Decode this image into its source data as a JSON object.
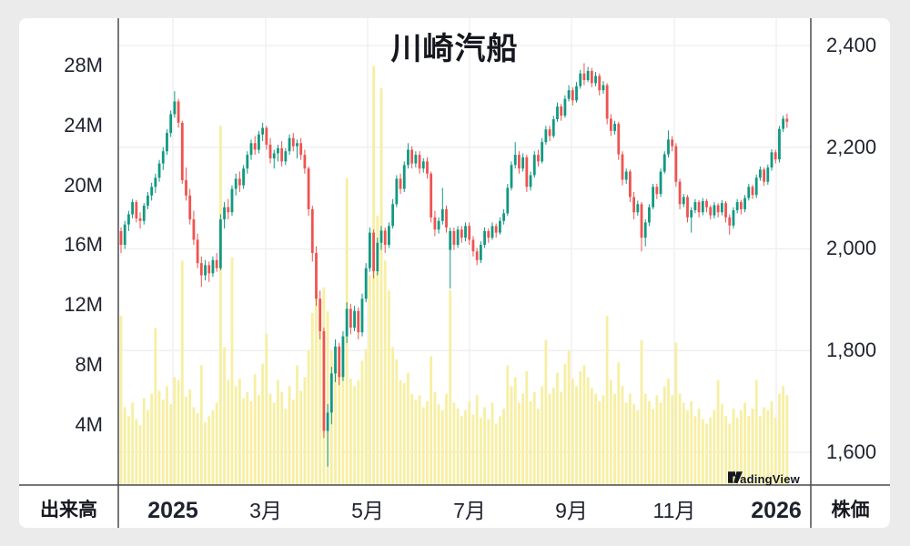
{
  "title": "川崎汽船",
  "volume_axis": {
    "title": "出来高",
    "ticks": [
      "28M",
      "24M",
      "20M",
      "16M",
      "12M",
      "8M",
      "4M"
    ]
  },
  "price_axis": {
    "title": "株価",
    "ticks": [
      "2,400",
      "2,200",
      "2,000",
      "1,800",
      "1,600"
    ]
  },
  "x_axis": {
    "ticks": [
      "2025",
      "3月",
      "5月",
      "7月",
      "9月",
      "11月",
      "2026"
    ]
  },
  "watermark": {
    "label": "TradingView"
  },
  "colors": {
    "up": "#119982",
    "down": "#ef5350",
    "volume": "#f7efa2",
    "grid": "#f0f0f0",
    "axis_line": "#4a4a4e",
    "text": "#1e222d",
    "background": "#ffffff",
    "page_background": "#ebebeb",
    "watermark_text": "#131722"
  },
  "chart_data": {
    "type": "candlestick",
    "title": "川崎汽船",
    "x_tick_labels": [
      "2025",
      "3月",
      "5月",
      "7月",
      "9月",
      "11月",
      "2026"
    ],
    "price_ticks": [
      2400,
      2200,
      2000,
      1800,
      1600
    ],
    "price_range": [
      1600,
      2400
    ],
    "volume_ticks_millions": [
      28,
      24,
      20,
      16,
      12,
      8,
      4
    ],
    "volume_unit": "M",
    "legend": "none",
    "grid": "on",
    "candles_format": [
      "open",
      "high",
      "low",
      "close",
      "volume_millions"
    ],
    "candles": [
      [
        2035,
        2042,
        1992,
        2008,
        11.3
      ],
      [
        2008,
        2055,
        2000,
        2048,
        5.2
      ],
      [
        2048,
        2075,
        2035,
        2068,
        4.6
      ],
      [
        2068,
        2098,
        2060,
        2092,
        5.5
      ],
      [
        2092,
        2096,
        2052,
        2060,
        4.4
      ],
      [
        2060,
        2072,
        2040,
        2055,
        4.0
      ],
      [
        2055,
        2090,
        2048,
        2085,
        5.8
      ],
      [
        2085,
        2112,
        2078,
        2105,
        5.0
      ],
      [
        2105,
        2130,
        2095,
        2122,
        6.1
      ],
      [
        2122,
        2148,
        2110,
        2140,
        10.5
      ],
      [
        2140,
        2175,
        2132,
        2168,
        6.3
      ],
      [
        2168,
        2200,
        2155,
        2192,
        5.7
      ],
      [
        2192,
        2235,
        2185,
        2228,
        6.6
      ],
      [
        2228,
        2272,
        2220,
        2265,
        5.4
      ],
      [
        2265,
        2310,
        2258,
        2290,
        7.2
      ],
      [
        2290,
        2295,
        2238,
        2248,
        7.0
      ],
      [
        2248,
        2252,
        2128,
        2135,
        15.0
      ],
      [
        2135,
        2160,
        2095,
        2105,
        5.9
      ],
      [
        2105,
        2118,
        2048,
        2058,
        6.4
      ],
      [
        2058,
        2075,
        2008,
        2018,
        5.2
      ],
      [
        2018,
        2030,
        1962,
        1972,
        4.8
      ],
      [
        1972,
        1985,
        1925,
        1948,
        8.0
      ],
      [
        1948,
        1978,
        1938,
        1968,
        4.2
      ],
      [
        1968,
        1975,
        1935,
        1952,
        4.6
      ],
      [
        1952,
        1985,
        1945,
        1978,
        5.0
      ],
      [
        1978,
        1992,
        1955,
        1962,
        5.5
      ],
      [
        1962,
        2068,
        1958,
        2058,
        24.0
      ],
      [
        2058,
        2092,
        2040,
        2082,
        9.2
      ],
      [
        2082,
        2098,
        2058,
        2072,
        7.0
      ],
      [
        2072,
        2125,
        2065,
        2118,
        15.2
      ],
      [
        2118,
        2148,
        2105,
        2138,
        6.6
      ],
      [
        2138,
        2152,
        2112,
        2125,
        7.1
      ],
      [
        2125,
        2165,
        2118,
        2158,
        5.8
      ],
      [
        2158,
        2192,
        2148,
        2185,
        6.2
      ],
      [
        2185,
        2215,
        2175,
        2208,
        5.6
      ],
      [
        2208,
        2222,
        2185,
        2195,
        7.4
      ],
      [
        2195,
        2232,
        2188,
        2225,
        6.0
      ],
      [
        2225,
        2248,
        2212,
        2238,
        8.1
      ],
      [
        2238,
        2242,
        2195,
        2205,
        10.1
      ],
      [
        2205,
        2218,
        2168,
        2178,
        6.1
      ],
      [
        2178,
        2195,
        2158,
        2188,
        5.5
      ],
      [
        2188,
        2205,
        2172,
        2198,
        7.0
      ],
      [
        2198,
        2212,
        2162,
        2172,
        6.2
      ],
      [
        2172,
        2198,
        2165,
        2192,
        5.1
      ],
      [
        2192,
        2225,
        2185,
        2218,
        6.6
      ],
      [
        2218,
        2228,
        2192,
        2202,
        5.7
      ],
      [
        2202,
        2215,
        2178,
        2208,
        8.0
      ],
      [
        2208,
        2218,
        2175,
        2185,
        6.3
      ],
      [
        2185,
        2195,
        2148,
        2158,
        7.2
      ],
      [
        2158,
        2162,
        2065,
        2078,
        9.0
      ],
      [
        2078,
        2085,
        1975,
        1992,
        11.5
      ],
      [
        1992,
        2005,
        1888,
        1902,
        13.0
      ],
      [
        1902,
        1918,
        1822,
        1838,
        12.0
      ],
      [
        1838,
        1845,
        1628,
        1642,
        13.2
      ],
      [
        1642,
        1695,
        1572,
        1678,
        11.6
      ],
      [
        1678,
        1768,
        1655,
        1755,
        9.0
      ],
      [
        1755,
        1822,
        1738,
        1808,
        8.2
      ],
      [
        1808,
        1815,
        1732,
        1748,
        7.6
      ],
      [
        1748,
        1838,
        1740,
        1828,
        8.0
      ],
      [
        1828,
        1895,
        1815,
        1882,
        20.5
      ],
      [
        1882,
        1892,
        1832,
        1845,
        7.1
      ],
      [
        1845,
        1888,
        1838,
        1878,
        6.6
      ],
      [
        1878,
        1885,
        1822,
        1836,
        7.0
      ],
      [
        1836,
        1912,
        1828,
        1902,
        8.3
      ],
      [
        1902,
        1972,
        1895,
        1962,
        9.1
      ],
      [
        1962,
        2042,
        1955,
        2032,
        14.0
      ],
      [
        2032,
        2038,
        1942,
        1956,
        28.0
      ],
      [
        1956,
        2022,
        1948,
        2012,
        18.0
      ],
      [
        2012,
        2045,
        1998,
        2036,
        26.5
      ],
      [
        2036,
        2042,
        1992,
        2008,
        15.0
      ],
      [
        2008,
        2052,
        2002,
        2045,
        13.0
      ],
      [
        2045,
        2098,
        2040,
        2088,
        9.2
      ],
      [
        2088,
        2145,
        2082,
        2138,
        8.4
      ],
      [
        2138,
        2148,
        2108,
        2118,
        7.0
      ],
      [
        2118,
        2172,
        2112,
        2165,
        6.8
      ],
      [
        2165,
        2208,
        2158,
        2195,
        7.5
      ],
      [
        2195,
        2202,
        2158,
        2168,
        6.1
      ],
      [
        2168,
        2192,
        2160,
        2185,
        5.7
      ],
      [
        2185,
        2192,
        2148,
        2158,
        6.0
      ],
      [
        2158,
        2178,
        2150,
        2172,
        5.2
      ],
      [
        2172,
        2180,
        2138,
        2148,
        5.6
      ],
      [
        2148,
        2152,
        2052,
        2062,
        8.6
      ],
      [
        2062,
        2075,
        2025,
        2038,
        6.2
      ],
      [
        2038,
        2062,
        2030,
        2055,
        5.4
      ],
      [
        2055,
        2120,
        2048,
        2078,
        5.0
      ],
      [
        2078,
        2085,
        2032,
        2042,
        6.1
      ],
      [
        1998,
        2042,
        1922,
        2035,
        13.0
      ],
      [
        2035,
        2042,
        1998,
        2008,
        5.5
      ],
      [
        2008,
        2045,
        2002,
        2038,
        5.1
      ],
      [
        2038,
        2045,
        2012,
        2022,
        4.6
      ],
      [
        2022,
        2052,
        2015,
        2045,
        5.0
      ],
      [
        2045,
        2052,
        2008,
        2018,
        5.6
      ],
      [
        2018,
        2025,
        1985,
        1995,
        4.7
      ],
      [
        1995,
        2002,
        1968,
        1978,
        6.0
      ],
      [
        1978,
        2015,
        1972,
        2008,
        4.5
      ],
      [
        2008,
        2042,
        2002,
        2035,
        5.2
      ],
      [
        2035,
        2040,
        2012,
        2022,
        4.4
      ],
      [
        2022,
        2052,
        2018,
        2045,
        5.5
      ],
      [
        2045,
        2050,
        2022,
        2032,
        4.1
      ],
      [
        2032,
        2062,
        2028,
        2055,
        4.6
      ],
      [
        2055,
        2078,
        2048,
        2070,
        5.1
      ],
      [
        2070,
        2128,
        2065,
        2120,
        8.0
      ],
      [
        2120,
        2172,
        2115,
        2165,
        6.6
      ],
      [
        2165,
        2210,
        2158,
        2185,
        7.2
      ],
      [
        2185,
        2192,
        2148,
        2158,
        5.5
      ],
      [
        2158,
        2188,
        2152,
        2180,
        6.1
      ],
      [
        2180,
        2185,
        2112,
        2122,
        7.6
      ],
      [
        2122,
        2152,
        2115,
        2145,
        5.6
      ],
      [
        2145,
        2192,
        2140,
        2185,
        6.2
      ],
      [
        2185,
        2195,
        2162,
        2172,
        5.1
      ],
      [
        2172,
        2218,
        2168,
        2210,
        6.6
      ],
      [
        2210,
        2242,
        2205,
        2235,
        9.7
      ],
      [
        2235,
        2242,
        2212,
        2222,
        6.1
      ],
      [
        2222,
        2262,
        2218,
        2255,
        6.5
      ],
      [
        2255,
        2288,
        2250,
        2280,
        7.5
      ],
      [
        2280,
        2285,
        2252,
        2262,
        6.2
      ],
      [
        2262,
        2302,
        2258,
        2295,
        8.1
      ],
      [
        2295,
        2322,
        2290,
        2312,
        9.0
      ],
      [
        2312,
        2318,
        2282,
        2292,
        7.1
      ],
      [
        2292,
        2328,
        2288,
        2320,
        6.6
      ],
      [
        2320,
        2352,
        2315,
        2345,
        7.6
      ],
      [
        2345,
        2365,
        2322,
        2332,
        8.0
      ],
      [
        2332,
        2358,
        2328,
        2350,
        7.2
      ],
      [
        2350,
        2356,
        2318,
        2326,
        6.5
      ],
      [
        2326,
        2348,
        2320,
        2340,
        6.1
      ],
      [
        2340,
        2345,
        2302,
        2312,
        5.6
      ],
      [
        2312,
        2330,
        2305,
        2322,
        6.0
      ],
      [
        2322,
        2326,
        2245,
        2256,
        11.3
      ],
      [
        2256,
        2265,
        2222,
        2232,
        7.0
      ],
      [
        2232,
        2252,
        2225,
        2246,
        6.1
      ],
      [
        2246,
        2250,
        2175,
        2186,
        8.2
      ],
      [
        2186,
        2192,
        2125,
        2136,
        6.6
      ],
      [
        2136,
        2158,
        2128,
        2152,
        5.5
      ],
      [
        2152,
        2156,
        2092,
        2102,
        6.1
      ],
      [
        2102,
        2112,
        2058,
        2072,
        5.4
      ],
      [
        2072,
        2095,
        2065,
        2088,
        5.0
      ],
      [
        2088,
        2092,
        1995,
        2022,
        9.7
      ],
      [
        2022,
        2058,
        2005,
        2052,
        6.1
      ],
      [
        2052,
        2088,
        2045,
        2082,
        5.6
      ],
      [
        2082,
        2128,
        2078,
        2122,
        5.1
      ],
      [
        2122,
        2128,
        2098,
        2108,
        6.0
      ],
      [
        2108,
        2158,
        2102,
        2152,
        5.5
      ],
      [
        2152,
        2192,
        2148,
        2186,
        6.6
      ],
      [
        2186,
        2233,
        2180,
        2215,
        7.1
      ],
      [
        2215,
        2222,
        2192,
        2202,
        6.0
      ],
      [
        2202,
        2208,
        2122,
        2132,
        9.5
      ],
      [
        2132,
        2138,
        2078,
        2088,
        6.1
      ],
      [
        2088,
        2108,
        2082,
        2102,
        5.5
      ],
      [
        2102,
        2106,
        2052,
        2062,
        5.0
      ],
      [
        2062,
        2082,
        2032,
        2076,
        5.6
      ],
      [
        2076,
        2098,
        2070,
        2092,
        4.6
      ],
      [
        2092,
        2096,
        2062,
        2072,
        5.1
      ],
      [
        2072,
        2100,
        2066,
        2094,
        4.4
      ],
      [
        2094,
        2098,
        2072,
        2082,
        4.1
      ],
      [
        2082,
        2086,
        2058,
        2066,
        4.5
      ],
      [
        2066,
        2092,
        2060,
        2086,
        5.0
      ],
      [
        2086,
        2090,
        2062,
        2072,
        7.0
      ],
      [
        2072,
        2096,
        2066,
        2090,
        5.4
      ],
      [
        2090,
        2094,
        2052,
        2062,
        4.6
      ],
      [
        2062,
        2068,
        2028,
        2046,
        4.1
      ],
      [
        2046,
        2082,
        2040,
        2076,
        5.1
      ],
      [
        2076,
        2098,
        2070,
        2092,
        4.5
      ],
      [
        2092,
        2096,
        2068,
        2078,
        5.0
      ],
      [
        2078,
        2106,
        2072,
        2100,
        5.5
      ],
      [
        2100,
        2128,
        2095,
        2122,
        4.6
      ],
      [
        2122,
        2126,
        2098,
        2106,
        5.1
      ],
      [
        2106,
        2146,
        2100,
        2140,
        7.0
      ],
      [
        2140,
        2162,
        2134,
        2156,
        4.6
      ],
      [
        2156,
        2160,
        2124,
        2132,
        5.2
      ],
      [
        2132,
        2166,
        2126,
        2160,
        5.0
      ],
      [
        2160,
        2196,
        2154,
        2190,
        5.6
      ],
      [
        2190,
        2195,
        2168,
        2176,
        4.5
      ],
      [
        2176,
        2242,
        2170,
        2236,
        6.1
      ],
      [
        2236,
        2262,
        2230,
        2256,
        6.6
      ],
      [
        2256,
        2266,
        2238,
        2250,
        6.0
      ]
    ]
  }
}
